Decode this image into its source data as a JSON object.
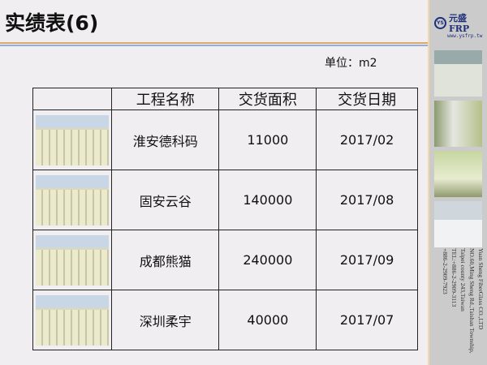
{
  "title": "实绩表(6)",
  "unit": "单位：m2",
  "logo": {
    "mark": "YS",
    "name": "元盛FRP",
    "url": "www.ysfrp.tw"
  },
  "address": [
    "Yuan Sheng FiberGlass CO.,LTD",
    "NO.60,Ming Sheng Rd.,Taishan Township,",
    "Taipei county 243,Taiwan",
    "TEL:+886-2-2909-3113",
    "+886-2-2909-7923"
  ],
  "table": {
    "headers": [
      "",
      "工程名称",
      "交货面积",
      "交货日期"
    ],
    "rows": [
      {
        "name": "淮安德科码",
        "area": "11000",
        "date": "2017/02"
      },
      {
        "name": "固安云谷",
        "area": "140000",
        "date": "2017/08"
      },
      {
        "name": "成都熊猫",
        "area": "240000",
        "date": "2017/09"
      },
      {
        "name": "深圳柔宇",
        "area": "40000",
        "date": "2017/07"
      }
    ]
  }
}
